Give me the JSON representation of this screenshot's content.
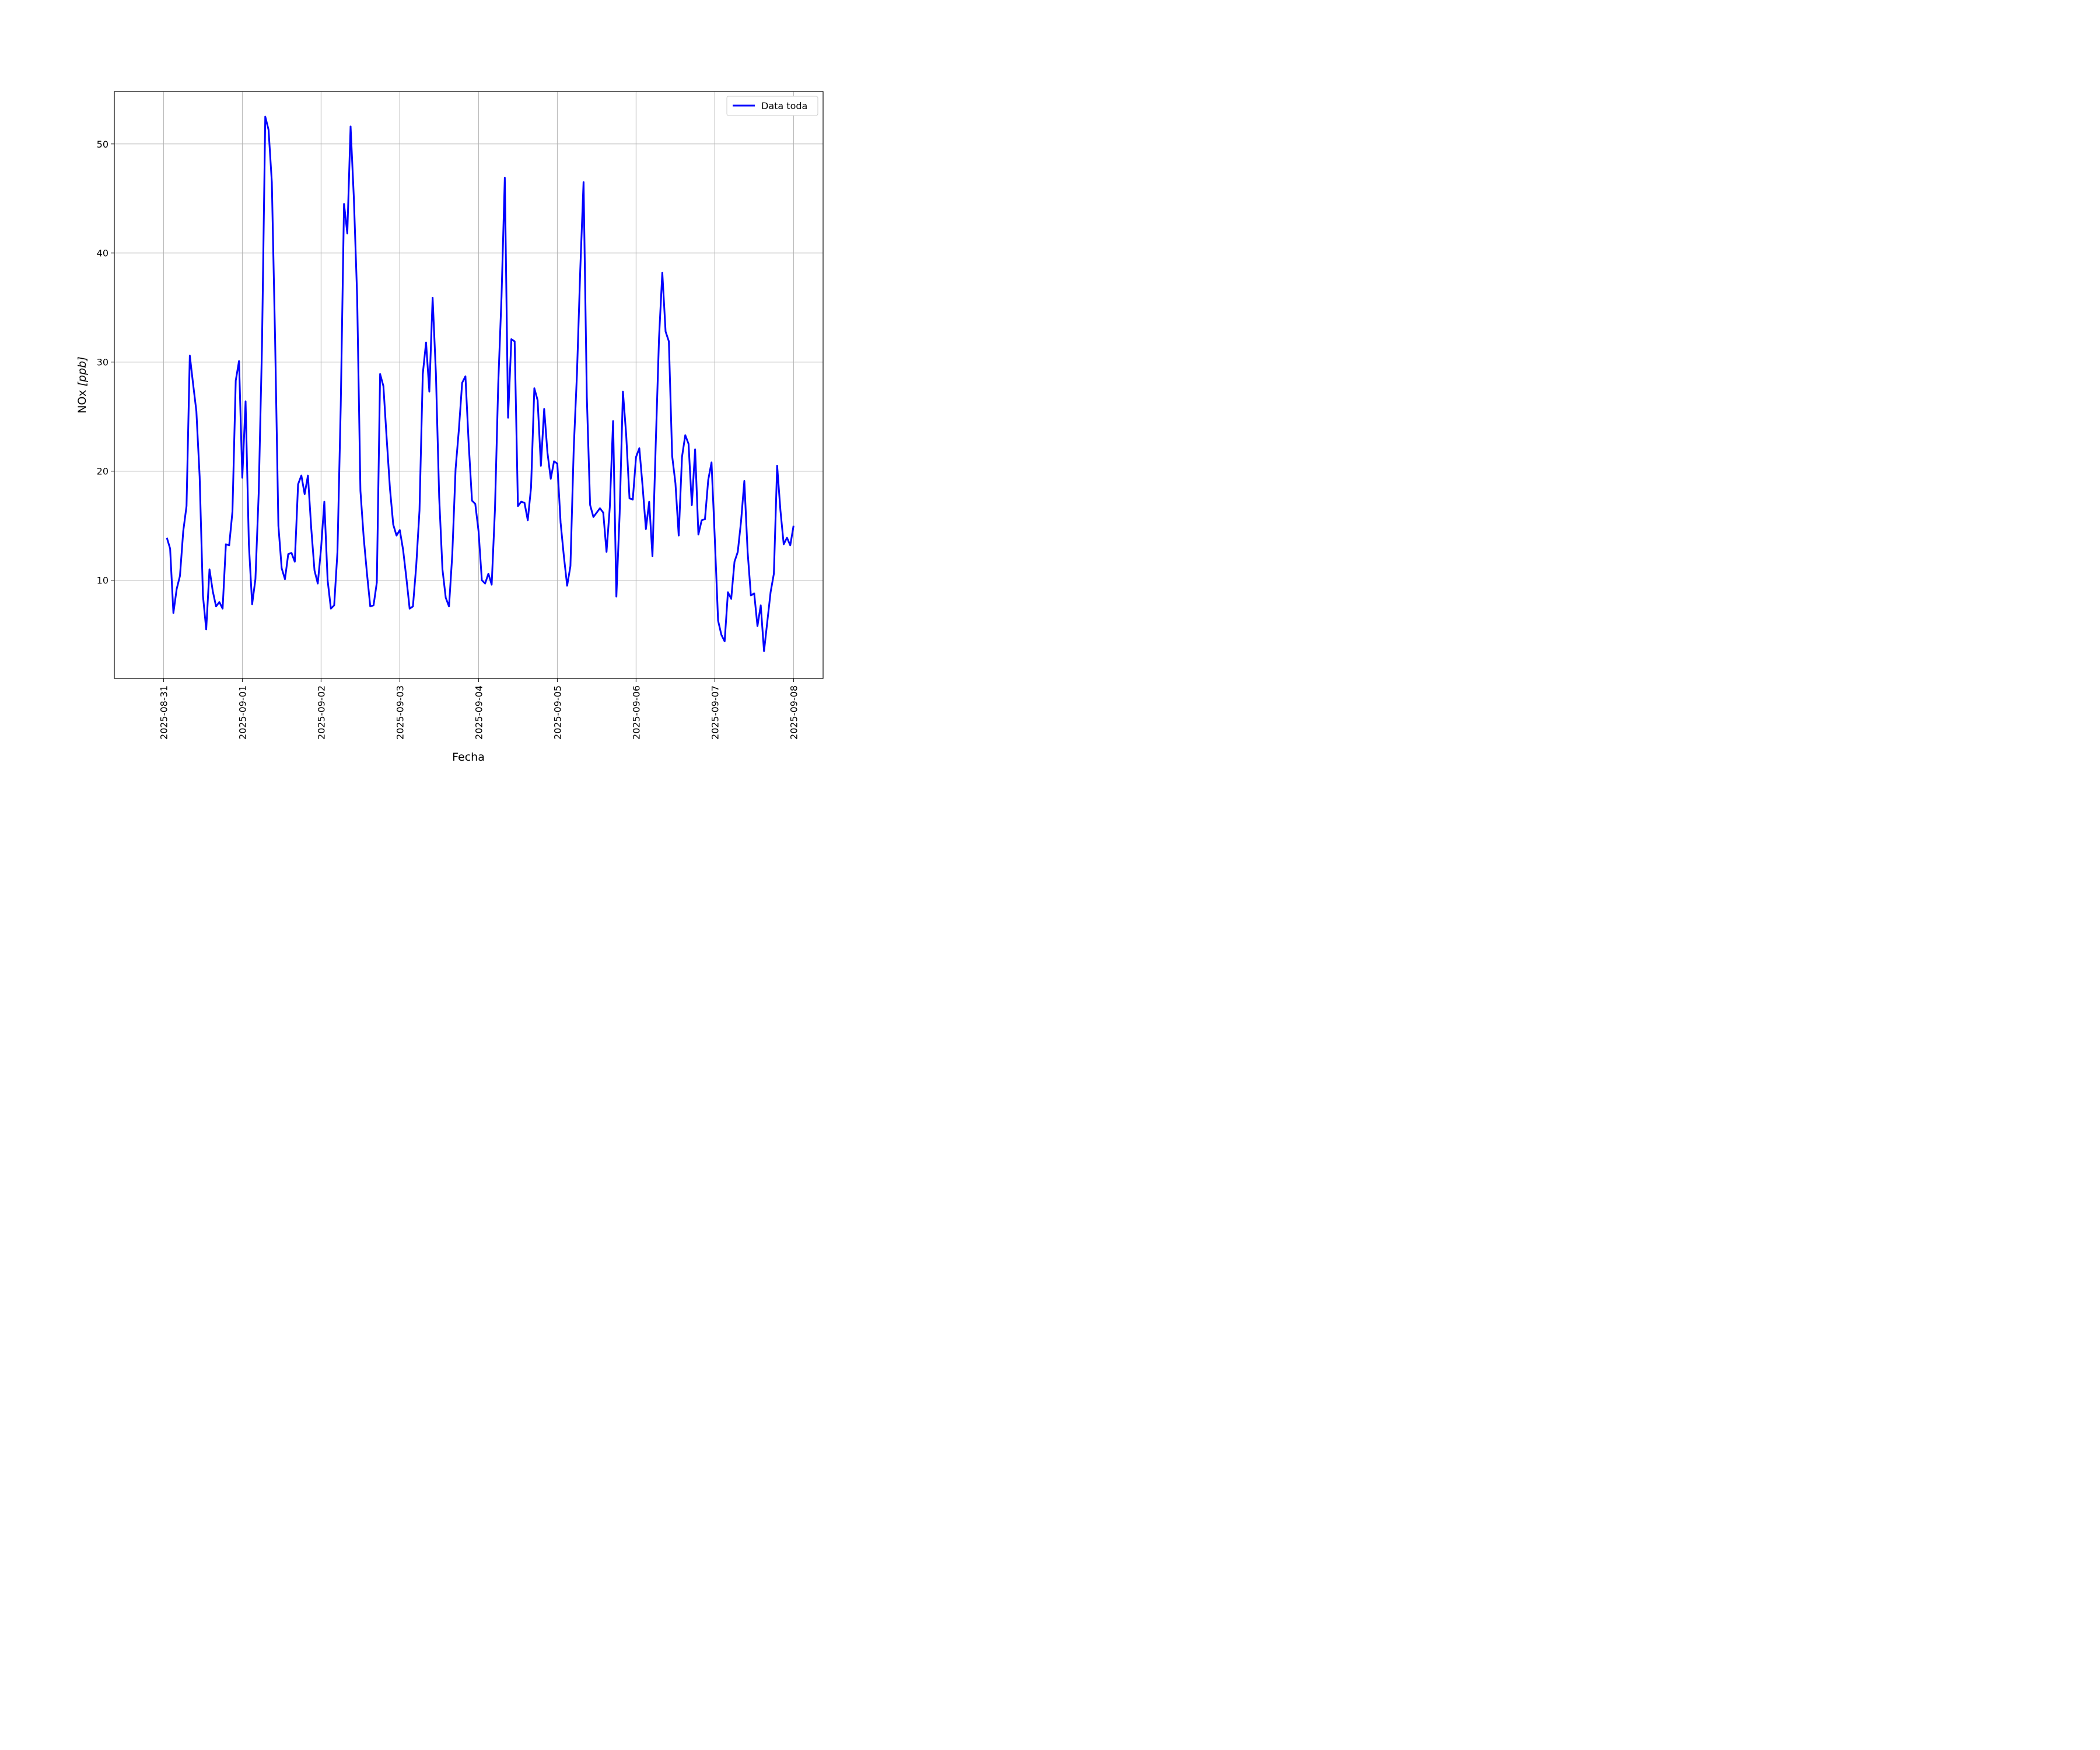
{
  "chart_data": {
    "type": "line",
    "title": "",
    "xlabel": "Fecha",
    "ylabel": "NOx [ppb]",
    "ylabel_parts": {
      "main": "NOx ",
      "unit": "[ppb]"
    },
    "xlim": [
      "2025-08-30T09:00",
      "2025-09-08T09:00"
    ],
    "ylim": [
      1.0,
      54.8
    ],
    "x_ticks": [
      "2025-08-31",
      "2025-09-01",
      "2025-09-02",
      "2025-09-03",
      "2025-09-04",
      "2025-09-05",
      "2025-09-06",
      "2025-09-07",
      "2025-09-08"
    ],
    "y_ticks": [
      10,
      20,
      30,
      40,
      50
    ],
    "grid": true,
    "legend_position": "top-right",
    "colors": {
      "line": "#0000ff",
      "grid": "#b0b0b0"
    },
    "series": [
      {
        "name": "Data toda",
        "points": [
          [
            "2025-08-31T01:00",
            13.9
          ],
          [
            "2025-08-31T02:00",
            12.9
          ],
          [
            "2025-08-31T03:00",
            7.0
          ],
          [
            "2025-08-31T04:00",
            9.2
          ],
          [
            "2025-08-31T05:00",
            10.4
          ],
          [
            "2025-08-31T06:00",
            14.5
          ],
          [
            "2025-08-31T07:00",
            16.8
          ],
          [
            "2025-08-31T08:00",
            30.6
          ],
          [
            "2025-08-31T09:00",
            28.0
          ],
          [
            "2025-08-31T10:00",
            25.5
          ],
          [
            "2025-08-31T11:00",
            19.5
          ],
          [
            "2025-08-31T12:00",
            8.6
          ],
          [
            "2025-08-31T13:00",
            5.5
          ],
          [
            "2025-08-31T14:00",
            11.0
          ],
          [
            "2025-08-31T15:00",
            9.0
          ],
          [
            "2025-08-31T16:00",
            7.6
          ],
          [
            "2025-08-31T17:00",
            8.0
          ],
          [
            "2025-08-31T18:00",
            7.4
          ],
          [
            "2025-08-31T19:00",
            13.3
          ],
          [
            "2025-08-31T20:00",
            13.2
          ],
          [
            "2025-08-31T21:00",
            16.3
          ],
          [
            "2025-08-31T22:00",
            28.3
          ],
          [
            "2025-08-31T23:00",
            30.1
          ],
          [
            "2025-09-01T00:00",
            19.4
          ],
          [
            "2025-09-01T01:00",
            26.4
          ],
          [
            "2025-09-01T02:00",
            13.3
          ],
          [
            "2025-09-01T03:00",
            7.8
          ],
          [
            "2025-09-01T04:00",
            10.1
          ],
          [
            "2025-09-01T05:00",
            18.0
          ],
          [
            "2025-09-01T06:00",
            31.5
          ],
          [
            "2025-09-01T07:00",
            52.5
          ],
          [
            "2025-09-01T08:00",
            51.3
          ],
          [
            "2025-09-01T09:00",
            46.5
          ],
          [
            "2025-09-01T10:00",
            32.0
          ],
          [
            "2025-09-01T11:00",
            15.0
          ],
          [
            "2025-09-01T12:00",
            11.1
          ],
          [
            "2025-09-01T13:00",
            10.1
          ],
          [
            "2025-09-01T14:00",
            12.4
          ],
          [
            "2025-09-01T15:00",
            12.5
          ],
          [
            "2025-09-01T16:00",
            11.7
          ],
          [
            "2025-09-01T17:00",
            18.8
          ],
          [
            "2025-09-01T18:00",
            19.6
          ],
          [
            "2025-09-01T19:00",
            17.9
          ],
          [
            "2025-09-01T20:00",
            19.6
          ],
          [
            "2025-09-01T21:00",
            14.8
          ],
          [
            "2025-09-01T22:00",
            10.9
          ],
          [
            "2025-09-01T23:00",
            9.7
          ],
          [
            "2025-09-02T00:00",
            12.9
          ],
          [
            "2025-09-02T01:00",
            17.2
          ],
          [
            "2025-09-02T02:00",
            10.0
          ],
          [
            "2025-09-02T03:00",
            7.4
          ],
          [
            "2025-09-02T04:00",
            7.7
          ],
          [
            "2025-09-02T05:00",
            12.6
          ],
          [
            "2025-09-02T06:00",
            26.0
          ],
          [
            "2025-09-02T07:00",
            44.5
          ],
          [
            "2025-09-02T08:00",
            41.8
          ],
          [
            "2025-09-02T09:00",
            51.6
          ],
          [
            "2025-09-02T10:00",
            45.0
          ],
          [
            "2025-09-02T11:00",
            36.0
          ],
          [
            "2025-09-02T12:00",
            18.2
          ],
          [
            "2025-09-02T13:00",
            13.9
          ],
          [
            "2025-09-02T14:00",
            10.6
          ],
          [
            "2025-09-02T15:00",
            7.6
          ],
          [
            "2025-09-02T16:00",
            7.7
          ],
          [
            "2025-09-02T17:00",
            9.8
          ],
          [
            "2025-09-02T18:00",
            28.9
          ],
          [
            "2025-09-02T19:00",
            27.8
          ],
          [
            "2025-09-02T20:00",
            23.0
          ],
          [
            "2025-09-02T21:00",
            18.4
          ],
          [
            "2025-09-02T22:00",
            15.1
          ],
          [
            "2025-09-02T23:00",
            14.1
          ],
          [
            "2025-09-03T00:00",
            14.6
          ],
          [
            "2025-09-03T01:00",
            12.8
          ],
          [
            "2025-09-03T02:00",
            10.2
          ],
          [
            "2025-09-03T03:00",
            7.4
          ],
          [
            "2025-09-03T04:00",
            7.6
          ],
          [
            "2025-09-03T05:00",
            11.3
          ],
          [
            "2025-09-03T06:00",
            16.4
          ],
          [
            "2025-09-03T07:00",
            28.9
          ],
          [
            "2025-09-03T08:00",
            31.8
          ],
          [
            "2025-09-03T09:00",
            27.3
          ],
          [
            "2025-09-03T10:00",
            35.9
          ],
          [
            "2025-09-03T11:00",
            29.0
          ],
          [
            "2025-09-03T12:00",
            17.6
          ],
          [
            "2025-09-03T13:00",
            11.0
          ],
          [
            "2025-09-03T14:00",
            8.4
          ],
          [
            "2025-09-03T15:00",
            7.6
          ],
          [
            "2025-09-03T16:00",
            12.4
          ],
          [
            "2025-09-03T17:00",
            20.2
          ],
          [
            "2025-09-03T18:00",
            23.8
          ],
          [
            "2025-09-03T19:00",
            28.1
          ],
          [
            "2025-09-03T20:00",
            28.7
          ],
          [
            "2025-09-03T21:00",
            22.5
          ],
          [
            "2025-09-03T22:00",
            17.3
          ],
          [
            "2025-09-03T23:00",
            17.0
          ],
          [
            "2025-09-04T00:00",
            14.5
          ],
          [
            "2025-09-04T01:00",
            10.0
          ],
          [
            "2025-09-04T02:00",
            9.7
          ],
          [
            "2025-09-04T03:00",
            10.6
          ],
          [
            "2025-09-04T04:00",
            9.6
          ],
          [
            "2025-09-04T05:00",
            16.5
          ],
          [
            "2025-09-04T06:00",
            28.0
          ],
          [
            "2025-09-04T07:00",
            36.0
          ],
          [
            "2025-09-04T08:00",
            46.9
          ],
          [
            "2025-09-04T09:00",
            24.9
          ],
          [
            "2025-09-04T10:00",
            32.1
          ],
          [
            "2025-09-04T11:00",
            31.9
          ],
          [
            "2025-09-04T12:00",
            16.8
          ],
          [
            "2025-09-04T13:00",
            17.2
          ],
          [
            "2025-09-04T14:00",
            17.1
          ],
          [
            "2025-09-04T15:00",
            15.5
          ],
          [
            "2025-09-04T16:00",
            18.5
          ],
          [
            "2025-09-04T17:00",
            27.6
          ],
          [
            "2025-09-04T18:00",
            26.5
          ],
          [
            "2025-09-04T19:00",
            20.5
          ],
          [
            "2025-09-04T20:00",
            25.7
          ],
          [
            "2025-09-04T21:00",
            21.7
          ],
          [
            "2025-09-04T22:00",
            19.3
          ],
          [
            "2025-09-04T23:00",
            20.9
          ],
          [
            "2025-09-05T00:00",
            20.7
          ],
          [
            "2025-09-05T01:00",
            15.3
          ],
          [
            "2025-09-05T02:00",
            12.2
          ],
          [
            "2025-09-05T03:00",
            9.5
          ],
          [
            "2025-09-05T04:00",
            11.3
          ],
          [
            "2025-09-05T05:00",
            22.0
          ],
          [
            "2025-09-05T06:00",
            29.0
          ],
          [
            "2025-09-05T07:00",
            38.5
          ],
          [
            "2025-09-05T08:00",
            46.5
          ],
          [
            "2025-09-05T09:00",
            26.8
          ],
          [
            "2025-09-05T10:00",
            16.9
          ],
          [
            "2025-09-05T11:00",
            15.8
          ],
          [
            "2025-09-05T12:00",
            16.2
          ],
          [
            "2025-09-05T13:00",
            16.6
          ],
          [
            "2025-09-05T14:00",
            16.2
          ],
          [
            "2025-09-05T15:00",
            12.6
          ],
          [
            "2025-09-05T16:00",
            16.7
          ],
          [
            "2025-09-05T17:00",
            24.6
          ],
          [
            "2025-09-05T18:00",
            8.5
          ],
          [
            "2025-09-05T19:00",
            16.1
          ],
          [
            "2025-09-05T20:00",
            27.3
          ],
          [
            "2025-09-05T21:00",
            23.3
          ],
          [
            "2025-09-05T22:00",
            17.5
          ],
          [
            "2025-09-05T23:00",
            17.4
          ],
          [
            "2025-09-06T00:00",
            21.3
          ],
          [
            "2025-09-06T01:00",
            22.1
          ],
          [
            "2025-09-06T02:00",
            18.6
          ],
          [
            "2025-09-06T03:00",
            14.7
          ],
          [
            "2025-09-06T04:00",
            17.2
          ],
          [
            "2025-09-06T05:00",
            12.2
          ],
          [
            "2025-09-06T06:00",
            22.5
          ],
          [
            "2025-09-06T07:00",
            32.2
          ],
          [
            "2025-09-06T08:00",
            38.2
          ],
          [
            "2025-09-06T09:00",
            32.8
          ],
          [
            "2025-09-06T10:00",
            31.9
          ],
          [
            "2025-09-06T11:00",
            21.4
          ],
          [
            "2025-09-06T12:00",
            18.9
          ],
          [
            "2025-09-06T13:00",
            14.1
          ],
          [
            "2025-09-06T14:00",
            21.3
          ],
          [
            "2025-09-06T15:00",
            23.3
          ],
          [
            "2025-09-06T16:00",
            22.5
          ],
          [
            "2025-09-06T17:00",
            16.9
          ],
          [
            "2025-09-06T18:00",
            22.0
          ],
          [
            "2025-09-06T19:00",
            14.2
          ],
          [
            "2025-09-06T20:00",
            15.5
          ],
          [
            "2025-09-06T21:00",
            15.6
          ],
          [
            "2025-09-06T22:00",
            19.2
          ],
          [
            "2025-09-06T23:00",
            20.8
          ],
          [
            "2025-09-07T00:00",
            13.8
          ],
          [
            "2025-09-07T01:00",
            6.3
          ],
          [
            "2025-09-07T02:00",
            5.0
          ],
          [
            "2025-09-07T03:00",
            4.4
          ],
          [
            "2025-09-07T04:00",
            8.9
          ],
          [
            "2025-09-07T05:00",
            8.3
          ],
          [
            "2025-09-07T06:00",
            11.7
          ],
          [
            "2025-09-07T07:00",
            12.6
          ],
          [
            "2025-09-07T08:00",
            15.4
          ],
          [
            "2025-09-07T09:00",
            19.1
          ],
          [
            "2025-09-07T10:00",
            12.6
          ],
          [
            "2025-09-07T11:00",
            8.6
          ],
          [
            "2025-09-07T12:00",
            8.8
          ],
          [
            "2025-09-07T13:00",
            5.8
          ],
          [
            "2025-09-07T14:00",
            7.7
          ],
          [
            "2025-09-07T15:00",
            3.5
          ],
          [
            "2025-09-07T16:00",
            6.2
          ],
          [
            "2025-09-07T17:00",
            8.9
          ],
          [
            "2025-09-07T18:00",
            10.6
          ],
          [
            "2025-09-07T19:00",
            20.5
          ],
          [
            "2025-09-07T20:00",
            16.4
          ],
          [
            "2025-09-07T21:00",
            13.3
          ],
          [
            "2025-09-07T22:00",
            13.9
          ],
          [
            "2025-09-07T23:00",
            13.2
          ],
          [
            "2025-09-08T00:00",
            15.0
          ]
        ]
      }
    ]
  }
}
